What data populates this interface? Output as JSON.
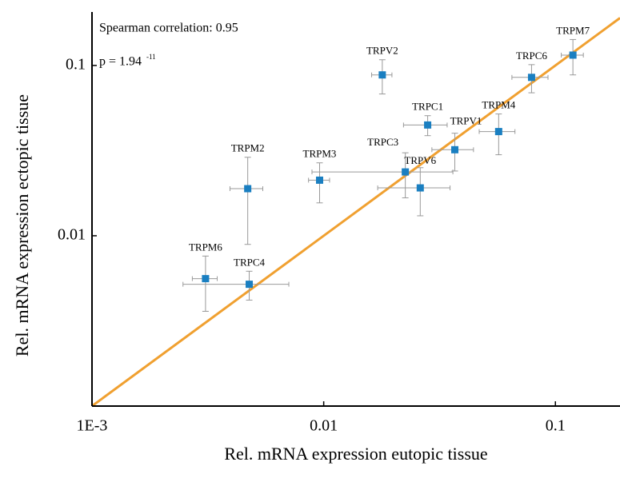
{
  "chart_data": {
    "type": "scatter",
    "x_label": "Rel. mRNA expression eutopic tissue",
    "y_label": "Rel. mRNA expression ectopic tissue",
    "annotations": {
      "correlation": "Spearman correlation: 0.95",
      "p_value": "p = 1.94",
      "p_exponent": "-11"
    },
    "log_x": true,
    "log_y": true,
    "xlim": [
      0.001,
      0.19
    ],
    "ylim": [
      0.001,
      0.206
    ],
    "xticks": [
      {
        "value": 0.001,
        "label": "1E-3"
      },
      0.01,
      0.1
    ],
    "yticks": [
      0.01,
      0.1
    ],
    "color": "#1a7fc1",
    "error_color": "#999999",
    "identity_line": true,
    "line_color": "#f0a030",
    "labels": [
      "TRPV2",
      "TRPC1",
      "TRPC6",
      "TRPM7",
      "TRPM4",
      "TRPV1",
      "TRPC3",
      "TRPV6",
      "TRPM3",
      "TRPM2",
      "TRPM6",
      "TRPC4"
    ],
    "x": [
      0.0179,
      0.0281,
      0.0789,
      0.119,
      0.0569,
      0.0368,
      0.0225,
      0.0261,
      0.0096,
      0.0047,
      0.00309,
      0.00477
    ],
    "xerr": [
      0.0018,
      0.006,
      0.014,
      0.013,
      0.01,
      0.0075,
      0.0136,
      0.009,
      0.001,
      0.00076,
      0.00038,
      0.0023
    ],
    "values": [
      0.088,
      0.0447,
      0.0851,
      0.115,
      0.0409,
      0.032,
      0.0237,
      0.0191,
      0.0212,
      0.0189,
      0.0056,
      0.00519
    ],
    "yerr": [
      0.02,
      0.006,
      0.016,
      0.027,
      0.011,
      0.008,
      0.007,
      0.006,
      0.0056,
      0.01,
      0.002,
      0.001
    ]
  }
}
